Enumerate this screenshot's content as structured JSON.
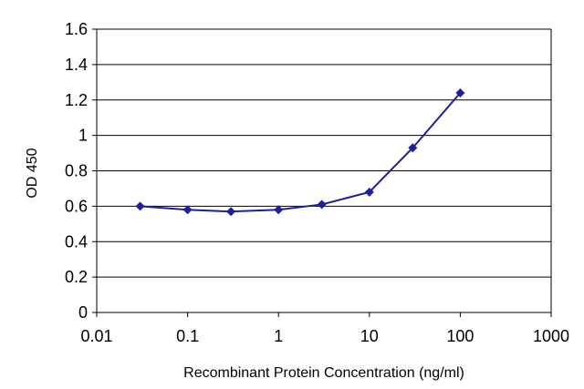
{
  "chart_data": {
    "type": "line",
    "title": "",
    "xlabel": "Recombinant Protein Concentration (ng/ml)",
    "ylabel": "OD 450",
    "x_scale": "log",
    "xlim": [
      0.01,
      1000
    ],
    "ylim": [
      0,
      1.6
    ],
    "x_ticks": [
      0.01,
      0.1,
      1,
      10,
      100,
      1000
    ],
    "x_tick_labels": [
      "0.01",
      "0.1",
      "1",
      "10",
      "100",
      "1000"
    ],
    "y_ticks": [
      0,
      0.2,
      0.4,
      0.6,
      0.8,
      1,
      1.2,
      1.4,
      1.6
    ],
    "y_tick_labels": [
      "0",
      "0.2",
      "0.4",
      "0.6",
      "0.8",
      "1",
      "1.2",
      "1.4",
      "1.6"
    ],
    "grid": "horizontal",
    "legend": "none",
    "series": [
      {
        "color": "#1f1f99",
        "marker": "diamond",
        "x": [
          0.03,
          0.1,
          0.3,
          1,
          3,
          10,
          30,
          100
        ],
        "y": [
          0.6,
          0.58,
          0.57,
          0.58,
          0.61,
          0.68,
          0.93,
          1.24
        ]
      }
    ]
  }
}
